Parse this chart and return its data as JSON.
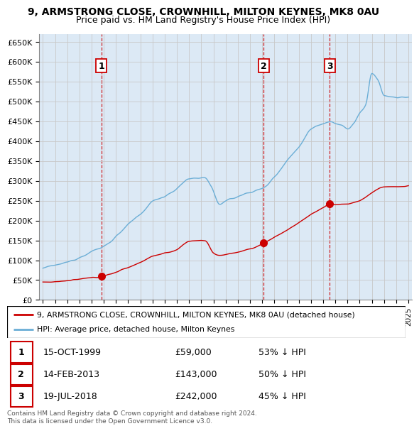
{
  "title_line1": "9, ARMSTRONG CLOSE, CROWNHILL, MILTON KEYNES, MK8 0AU",
  "title_line2": "Price paid vs. HM Land Registry's House Price Index (HPI)",
  "ylim": [
    0,
    670000
  ],
  "yticks": [
    0,
    50000,
    100000,
    150000,
    200000,
    250000,
    300000,
    350000,
    400000,
    450000,
    500000,
    550000,
    600000,
    650000
  ],
  "ytick_labels": [
    "£0",
    "£50K",
    "£100K",
    "£150K",
    "£200K",
    "£250K",
    "£300K",
    "£350K",
    "£400K",
    "£450K",
    "£500K",
    "£550K",
    "£600K",
    "£650K"
  ],
  "hpi_color": "#6baed6",
  "price_color": "#cc0000",
  "vline_color": "#cc0000",
  "grid_color": "#c8c8c8",
  "plot_bg_color": "#dce9f5",
  "transactions": [
    {
      "num": 1,
      "year": 1999.79,
      "price": 59000,
      "label": "15-OCT-1999",
      "amount": "£59,000",
      "hpi_note": "53% ↓ HPI"
    },
    {
      "num": 2,
      "year": 2013.12,
      "price": 143000,
      "label": "14-FEB-2013",
      "amount": "£143,000",
      "hpi_note": "50% ↓ HPI"
    },
    {
      "num": 3,
      "year": 2018.54,
      "price": 242000,
      "label": "19-JUL-2018",
      "amount": "£242,000",
      "hpi_note": "45% ↓ HPI"
    }
  ],
  "legend_line1": "9, ARMSTRONG CLOSE, CROWNHILL, MILTON KEYNES, MK8 0AU (detached house)",
  "legend_line2": "HPI: Average price, detached house, Milton Keynes",
  "footnote": "Contains HM Land Registry data © Crown copyright and database right 2024.\nThis data is licensed under the Open Government Licence v3.0."
}
